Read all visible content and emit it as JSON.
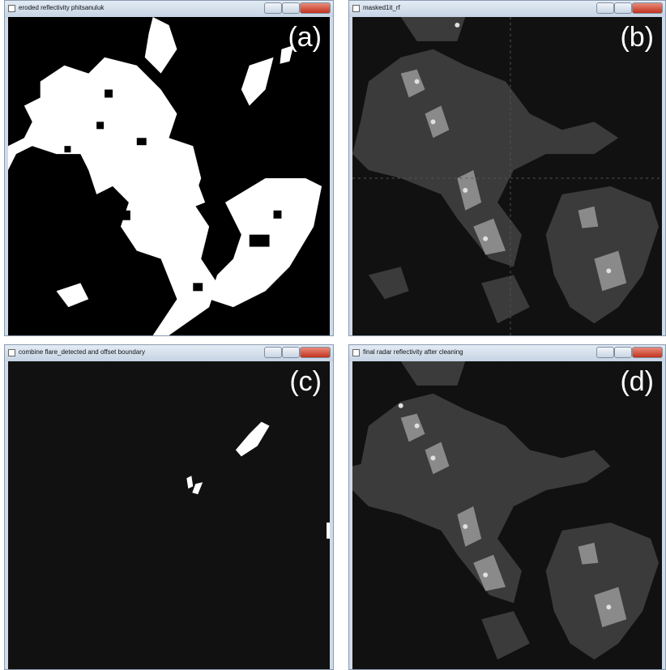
{
  "windows": [
    {
      "title": "eroded reflectivity phitsanuluk",
      "label": "(a)"
    },
    {
      "title": "masked1it_rf",
      "label": "(b)"
    },
    {
      "title": "combine flare_detected and offset boundary",
      "label": "(c)"
    },
    {
      "title": "final radar reflectivity after cleaning",
      "label": "(d)"
    }
  ]
}
